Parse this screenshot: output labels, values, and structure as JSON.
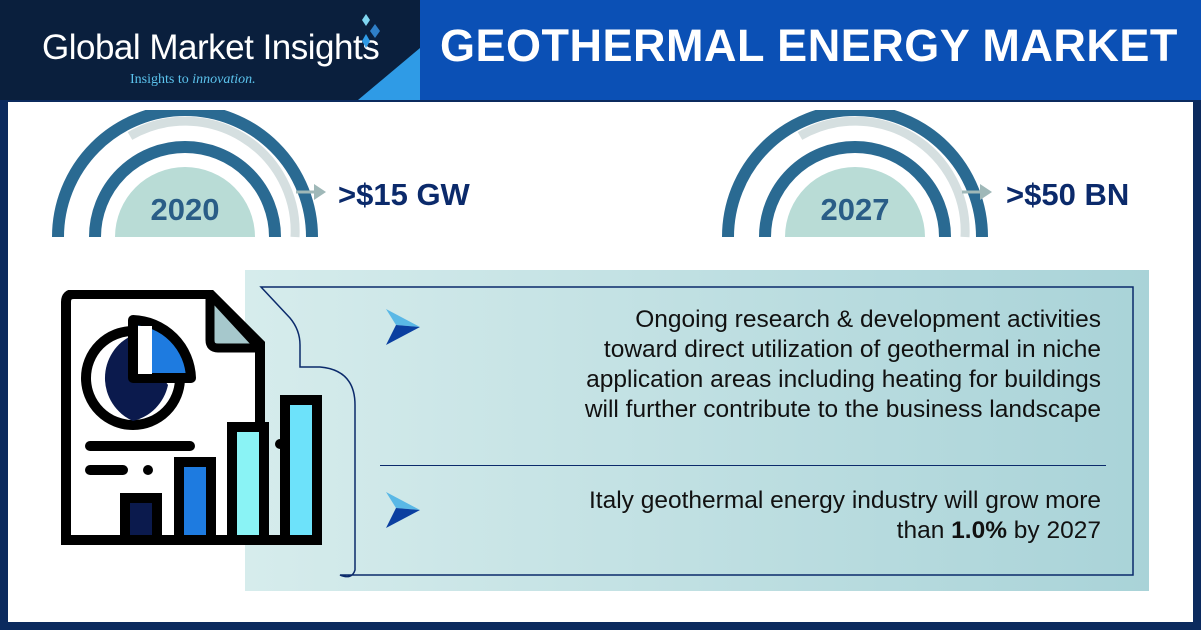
{
  "header": {
    "brand": "Global Market Insights",
    "tagline_plain": "Insights to ",
    "tagline_italic": "innovation.",
    "title": "GEOTHERMAL ENERGY MARKET"
  },
  "stats": [
    {
      "year": "2020",
      "value": ">$15 GW"
    },
    {
      "year": "2027",
      "value": ">$50 BN"
    }
  ],
  "points": [
    {
      "icon": "arrow-right-icon",
      "lines": [
        "Ongoing research & development activities",
        "toward direct utilization of geothermal in niche",
        "application areas including heating for buildings",
        "will further contribute to the business landscape"
      ]
    },
    {
      "icon": "arrow-right-icon",
      "line1": "Italy geothermal energy industry will grow more",
      "pre": "than ",
      "bold": "1.0%",
      "post": " by 2027"
    }
  ],
  "colors": {
    "navy": "#0a1f3d",
    "blue": "#0b50b5",
    "accent": "#2f9be6",
    "gauge": "#2a6a92",
    "panel": "#d6ecec"
  }
}
